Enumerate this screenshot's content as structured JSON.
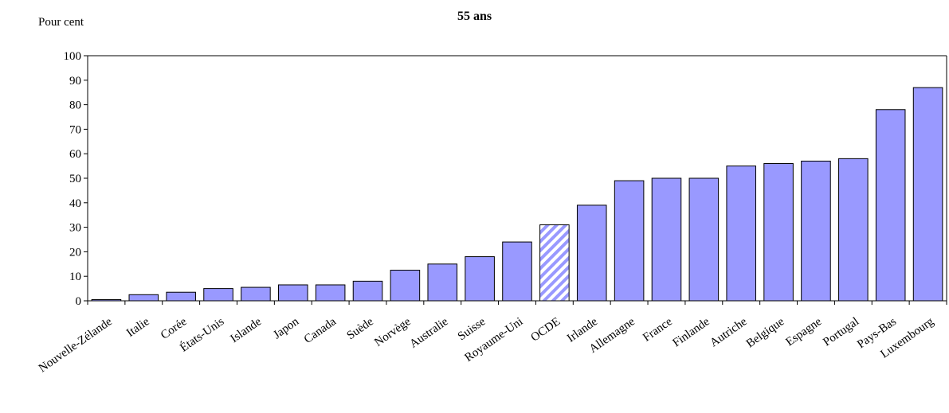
{
  "chart_data": {
    "type": "bar",
    "title": "55 ans",
    "ylabel": "Pour cent",
    "xlabel": "",
    "ylim": [
      0,
      100
    ],
    "yticks": [
      0,
      10,
      20,
      30,
      40,
      50,
      60,
      70,
      80,
      90,
      100
    ],
    "grid": false,
    "categories": [
      "Nouvelle-Zélande",
      "Italie",
      "Corée",
      "États-Unis",
      "Islande",
      "Japon",
      "Canada",
      "Suède",
      "Norvège",
      "Australie",
      "Suisse",
      "Royaume-Uni",
      "OCDE",
      "Irlande",
      "Allemagne",
      "France",
      "Finlande",
      "Autriche",
      "Belgique",
      "Espagne",
      "Portugal",
      "Pays-Bas",
      "Luxembourg"
    ],
    "values": [
      0.5,
      2.5,
      3.5,
      5,
      5.5,
      6.5,
      6.5,
      8,
      12.5,
      15,
      18,
      24,
      31,
      39,
      49,
      50,
      50,
      55,
      56,
      57,
      58,
      78,
      87
    ],
    "highlight_category": "OCDE",
    "colors": {
      "bar": "#9999ff",
      "highlight_bar": "#9999ff",
      "highlight_stripe": "#ffffff",
      "outline": "#000000"
    }
  }
}
